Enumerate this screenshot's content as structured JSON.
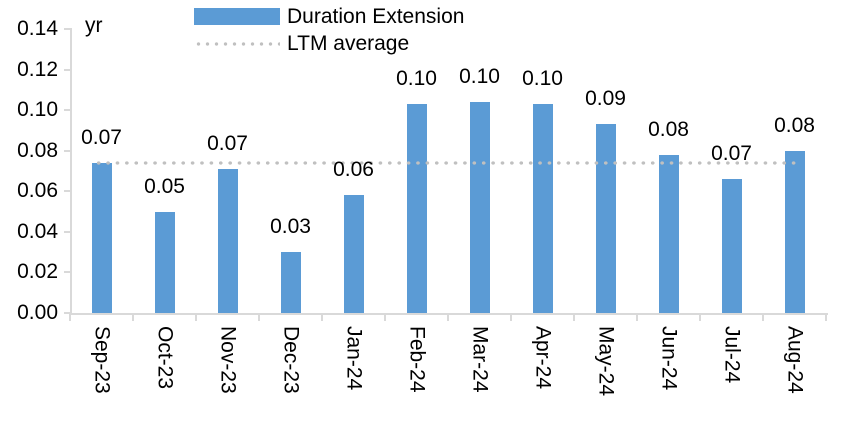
{
  "chart_data": {
    "type": "bar",
    "title": "",
    "unit_label": "yr",
    "categories": [
      "Sep-23",
      "Oct-23",
      "Nov-23",
      "Dec-23",
      "Jan-24",
      "Feb-24",
      "Mar-24",
      "Apr-24",
      "May-24",
      "Jun-24",
      "Jul-24",
      "Aug-24"
    ],
    "series": [
      {
        "name": "Duration Extension",
        "color": "#5B9BD5",
        "values": [
          0.074,
          0.05,
          0.071,
          0.03,
          0.058,
          0.103,
          0.104,
          0.103,
          0.093,
          0.078,
          0.066,
          0.08
        ],
        "data_labels": [
          "0.07",
          "0.05",
          "0.07",
          "0.03",
          "0.06",
          "0.10",
          "0.10",
          "0.10",
          "0.09",
          "0.08",
          "0.07",
          "0.08"
        ]
      }
    ],
    "reference_line": {
      "name": "LTM average",
      "value": 0.074,
      "style": "dotted",
      "color": "#C0C0C0"
    },
    "ylim": [
      0,
      0.14
    ],
    "yticks": [
      "0.00",
      "0.02",
      "0.04",
      "0.06",
      "0.08",
      "0.10",
      "0.12",
      "0.14"
    ],
    "grid": false,
    "legend_position": "top",
    "axis_color": "#D9D9D9",
    "text_color": "#000000"
  }
}
